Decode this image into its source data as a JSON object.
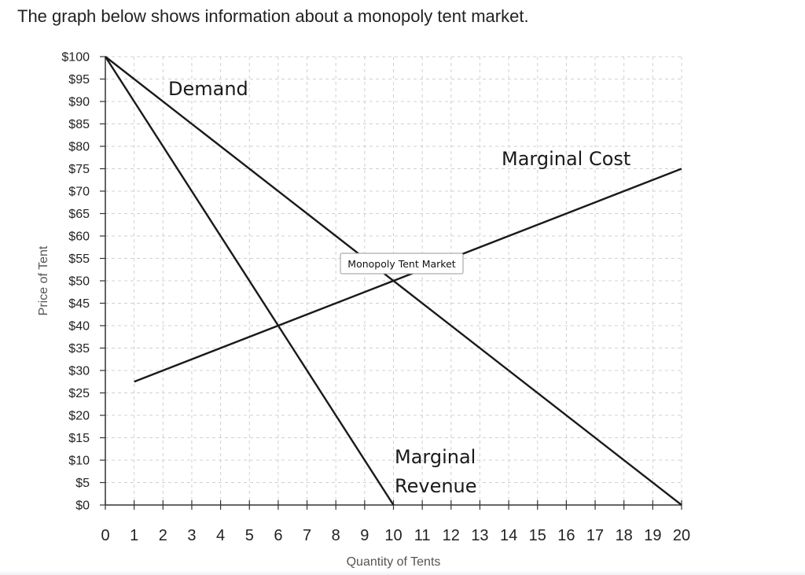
{
  "question": "The graph below shows information about a monopoly tent market.",
  "chart_data": {
    "type": "line",
    "title": "Monopoly Tent Market",
    "xlabel": "Quantity of Tents",
    "ylabel": "Price of Tent",
    "xlim": [
      0,
      20
    ],
    "ylim": [
      0,
      100
    ],
    "x_ticks": [
      "0",
      "1",
      "2",
      "3",
      "4",
      "5",
      "6",
      "7",
      "8",
      "9",
      "10",
      "11",
      "12",
      "13",
      "14",
      "15",
      "16",
      "17",
      "18",
      "19",
      "20"
    ],
    "y_ticks": [
      "$0",
      "$5",
      "$10",
      "$15",
      "$20",
      "$25",
      "$30",
      "$35",
      "$40",
      "$45",
      "$50",
      "$55",
      "$60",
      "$65",
      "$70",
      "$75",
      "$80",
      "$85",
      "$90",
      "$95",
      "$100"
    ],
    "grid": true,
    "series": [
      {
        "name": "Demand",
        "points": [
          [
            0,
            100
          ],
          [
            20,
            0
          ]
        ]
      },
      {
        "name": "Marginal Cost",
        "points": [
          [
            1,
            27.5
          ],
          [
            20,
            75
          ]
        ]
      },
      {
        "name": "Marginal Revenue",
        "points": [
          [
            0,
            100
          ],
          [
            10,
            0
          ]
        ]
      }
    ],
    "labels": [
      {
        "lines": [
          "Demand"
        ]
      },
      {
        "lines": [
          "Marginal Cost"
        ]
      },
      {
        "lines": [
          "Marginal",
          "Revenue"
        ]
      }
    ],
    "tooltip": "Monopoly Tent Market"
  }
}
